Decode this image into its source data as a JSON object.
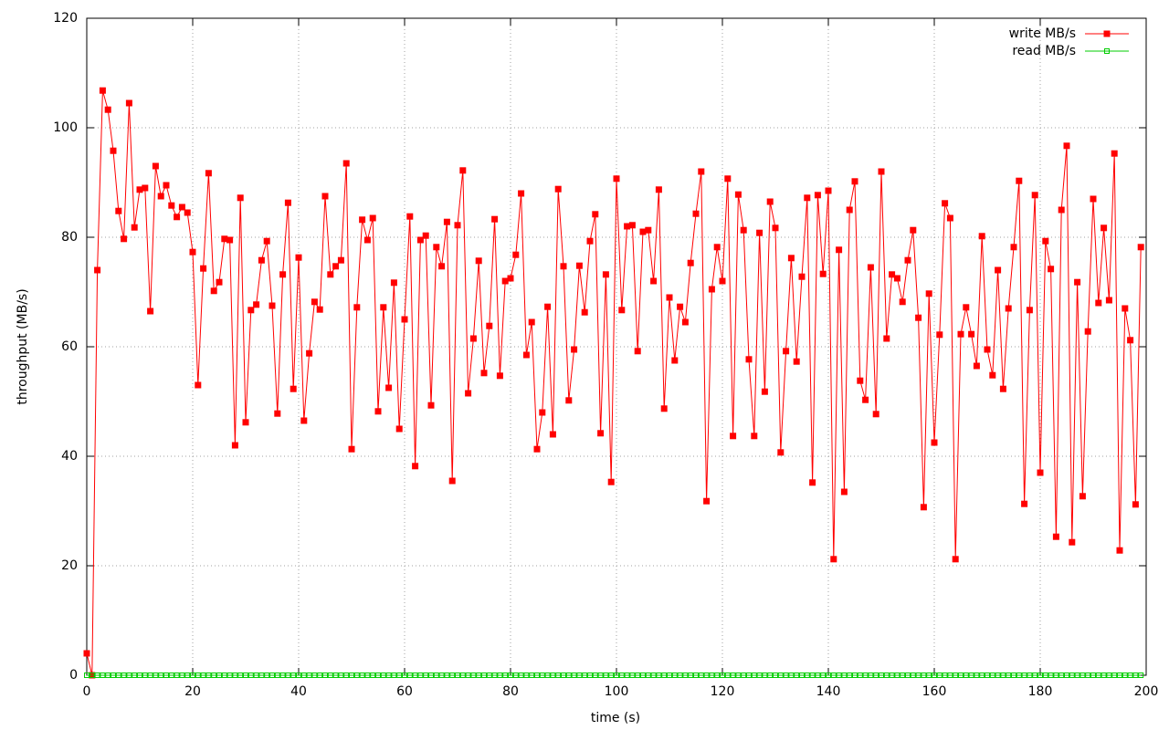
{
  "chart_data": {
    "type": "line",
    "x_label": "time (s)",
    "y_label": "throughput (MB/s)",
    "x": [
      0,
      1,
      2,
      3,
      4,
      5,
      6,
      7,
      8,
      9,
      10,
      11,
      12,
      13,
      14,
      15,
      16,
      17,
      18,
      19,
      20,
      21,
      22,
      23,
      24,
      25,
      26,
      27,
      28,
      29,
      30,
      31,
      32,
      33,
      34,
      35,
      36,
      37,
      38,
      39,
      40,
      41,
      42,
      43,
      44,
      45,
      46,
      47,
      48,
      49,
      50,
      51,
      52,
      53,
      54,
      55,
      56,
      57,
      58,
      59,
      60,
      61,
      62,
      63,
      64,
      65,
      66,
      67,
      68,
      69,
      70,
      71,
      72,
      73,
      74,
      75,
      76,
      77,
      78,
      79,
      80,
      81,
      82,
      83,
      84,
      85,
      86,
      87,
      88,
      89,
      90,
      91,
      92,
      93,
      94,
      95,
      96,
      97,
      98,
      99,
      100,
      101,
      102,
      103,
      104,
      105,
      106,
      107,
      108,
      109,
      110,
      111,
      112,
      113,
      114,
      115,
      116,
      117,
      118,
      119,
      120,
      121,
      122,
      123,
      124,
      125,
      126,
      127,
      128,
      129,
      130,
      131,
      132,
      133,
      134,
      135,
      136,
      137,
      138,
      139,
      140,
      141,
      142,
      143,
      144,
      145,
      146,
      147,
      148,
      149,
      150,
      151,
      152,
      153,
      154,
      155,
      156,
      157,
      158,
      159,
      160,
      161,
      162,
      163,
      164,
      165,
      166,
      167,
      168,
      169,
      170,
      171,
      172,
      173,
      174,
      175,
      176,
      177,
      178,
      179,
      180,
      181,
      182,
      183,
      184,
      185,
      186,
      187,
      188,
      189,
      190,
      191,
      192,
      193,
      194,
      195,
      196,
      197,
      198,
      199
    ],
    "series": [
      {
        "name": "write MB/s",
        "color": "#ff0000",
        "marker": "filled",
        "values": [
          4,
          0,
          74,
          106.8,
          103.3,
          95.8,
          84.8,
          79.7,
          104.5,
          81.8,
          88.7,
          89,
          66.5,
          93,
          87.5,
          89.5,
          85.8,
          83.7,
          85.5,
          84.5,
          77.3,
          53,
          74.3,
          91.7,
          70.2,
          71.8,
          79.7,
          79.5,
          42,
          87.2,
          46.2,
          66.7,
          67.7,
          75.8,
          79.3,
          67.5,
          47.8,
          73.2,
          86.3,
          52.3,
          76.3,
          46.5,
          58.8,
          68.2,
          66.8,
          87.5,
          73.2,
          74.7,
          75.8,
          93.5,
          41.3,
          67.2,
          83.2,
          79.5,
          83.5,
          48.2,
          67.2,
          52.5,
          71.7,
          45,
          65,
          83.8,
          38.2,
          79.5,
          80.3,
          49.3,
          78.2,
          74.7,
          82.8,
          35.5,
          82.2,
          92.2,
          51.5,
          61.5,
          75.7,
          55.2,
          63.8,
          83.3,
          54.7,
          72,
          72.5,
          76.8,
          88,
          58.5,
          64.5,
          41.3,
          48,
          67.3,
          44,
          88.8,
          74.7,
          50.2,
          59.5,
          74.8,
          66.3,
          79.3,
          84.2,
          44.2,
          73.2,
          35.3,
          90.7,
          66.7,
          82,
          82.2,
          59.2,
          81,
          81.3,
          72,
          88.7,
          48.7,
          69,
          57.5,
          67.3,
          64.5,
          75.3,
          84.3,
          92,
          31.8,
          70.5,
          78.2,
          72,
          90.7,
          43.7,
          87.8,
          81.3,
          57.7,
          43.7,
          80.8,
          51.8,
          86.5,
          81.7,
          40.7,
          59.2,
          76.2,
          57.3,
          72.8,
          87.2,
          35.2,
          87.7,
          73.3,
          88.5,
          21.2,
          77.7,
          33.5,
          85,
          90.2,
          53.8,
          50.3,
          74.5,
          47.7,
          92,
          61.5,
          73.2,
          72.5,
          68.2,
          75.8,
          81.3,
          65.3,
          30.7,
          69.7,
          42.5,
          62.2,
          86.2,
          83.5,
          21.2,
          62.3,
          67.2,
          62.3,
          56.5,
          80.2,
          59.5,
          54.8,
          74,
          52.3,
          67,
          78.2,
          90.3,
          31.3,
          66.7,
          87.7,
          37,
          79.3,
          74.2,
          25.3,
          85,
          96.7,
          24.3,
          71.8,
          32.7,
          62.8,
          87,
          68,
          81.7,
          68.5,
          95.3,
          22.8,
          67,
          61.2,
          31.2,
          78.2
        ]
      },
      {
        "name": "read MB/s",
        "color": "#00cc00",
        "marker": "open",
        "values": [
          0,
          0,
          0,
          0,
          0,
          0,
          0,
          0,
          0,
          0,
          0,
          0,
          0,
          0,
          0,
          0,
          0,
          0,
          0,
          0,
          0,
          0,
          0,
          0,
          0,
          0,
          0,
          0,
          0,
          0,
          0,
          0,
          0,
          0,
          0,
          0,
          0,
          0,
          0,
          0,
          0,
          0,
          0,
          0,
          0,
          0,
          0,
          0,
          0,
          0,
          0,
          0,
          0,
          0,
          0,
          0,
          0,
          0,
          0,
          0,
          0,
          0,
          0,
          0,
          0,
          0,
          0,
          0,
          0,
          0,
          0,
          0,
          0,
          0,
          0,
          0,
          0,
          0,
          0,
          0,
          0,
          0,
          0,
          0,
          0,
          0,
          0,
          0,
          0,
          0,
          0,
          0,
          0,
          0,
          0,
          0,
          0,
          0,
          0,
          0,
          0,
          0,
          0,
          0,
          0,
          0,
          0,
          0,
          0,
          0,
          0,
          0,
          0,
          0,
          0,
          0,
          0,
          0,
          0,
          0,
          0,
          0,
          0,
          0,
          0,
          0,
          0,
          0,
          0,
          0,
          0,
          0,
          0,
          0,
          0,
          0,
          0,
          0,
          0,
          0,
          0,
          0,
          0,
          0,
          0,
          0,
          0,
          0,
          0,
          0,
          0,
          0,
          0,
          0,
          0,
          0,
          0,
          0,
          0,
          0,
          0,
          0,
          0,
          0,
          0,
          0,
          0,
          0,
          0,
          0,
          0,
          0,
          0,
          0,
          0,
          0,
          0,
          0,
          0,
          0,
          0,
          0,
          0,
          0,
          0,
          0,
          0,
          0,
          0,
          0,
          0,
          0,
          0,
          0,
          0,
          0,
          0,
          0,
          0,
          0
        ]
      }
    ],
    "xlim": [
      0,
      200
    ],
    "xticks": [
      0,
      20,
      40,
      60,
      80,
      100,
      120,
      140,
      160,
      180,
      200
    ],
    "ylim": [
      0,
      120
    ],
    "yticks": [
      0,
      20,
      40,
      60,
      80,
      100,
      120
    ],
    "grid": true,
    "legend": "top-right"
  }
}
